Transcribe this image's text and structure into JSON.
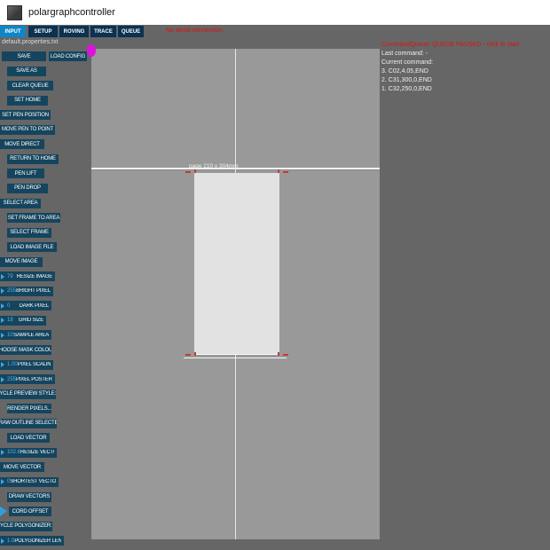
{
  "window": {
    "title": "polargraphcontroller"
  },
  "tabs": [
    {
      "label": "INPUT",
      "active": true
    },
    {
      "label": "SETUP",
      "active": false
    },
    {
      "label": "ROVING",
      "active": false
    },
    {
      "label": "TRACE",
      "active": false
    },
    {
      "label": "QUEUE",
      "active": false
    }
  ],
  "status": {
    "serial": "No serial connection."
  },
  "properties_file": "default.properties.txt",
  "sidebar": {
    "rows": [
      {
        "type": "pair",
        "buttons": [
          "SAVE",
          "LOAD CONFIG"
        ]
      },
      {
        "type": "button",
        "label": "SAVE AS"
      },
      {
        "type": "button",
        "label": "CLEAR QUEUE"
      },
      {
        "type": "button",
        "label": "SET HOME"
      },
      {
        "type": "button",
        "label": "SET PEN POSITION"
      },
      {
        "type": "button",
        "label": "MOVE PEN TO POINT"
      },
      {
        "type": "button",
        "label": "MOVE DIRECT"
      },
      {
        "type": "button",
        "label": "RETURN TO HOME"
      },
      {
        "type": "button",
        "label": "PEN LIFT"
      },
      {
        "type": "button",
        "label": "PEN DROP"
      },
      {
        "type": "button",
        "label": "SELECT AREA"
      },
      {
        "type": "button",
        "label": "SET FRAME TO AREA"
      },
      {
        "type": "button",
        "label": "SELECT FRAME"
      },
      {
        "type": "button",
        "label": "LOAD IMAGE FILE"
      },
      {
        "type": "button",
        "label": "MOVE IMAGE"
      },
      {
        "type": "number",
        "value": "79",
        "label": "RESIZE IMAGE"
      },
      {
        "type": "number",
        "value": "255",
        "label": "BRIGHT PIXEL"
      },
      {
        "type": "number",
        "value": "0",
        "label": "DARK PIXEL"
      },
      {
        "type": "number",
        "value": "18",
        "label": "GRID SIZE"
      },
      {
        "type": "number",
        "value": "10",
        "label": "SAMPLE AREA"
      },
      {
        "type": "button",
        "label": "CHOOSE MASK COLOUR"
      },
      {
        "type": "number",
        "value": "1.00",
        "label": "PIXEL SCALING"
      },
      {
        "type": "number",
        "value": "255",
        "label": "PIXEL POSTERIZE"
      },
      {
        "type": "button",
        "label": "CYCLE PREVIEW STYLE: 3"
      },
      {
        "type": "button",
        "label": "RENDER PIXELS..."
      },
      {
        "type": "button",
        "label": "DRAW OUTLINE SELECTED"
      },
      {
        "type": "button",
        "label": "LOAD VECTOR"
      },
      {
        "type": "number",
        "value": "102.6",
        "label": "RESIZE VECTOR"
      },
      {
        "type": "button",
        "label": "MOVE VECTOR"
      },
      {
        "type": "number",
        "value": "0",
        "label": "SHORTEST VECTOR"
      },
      {
        "type": "button",
        "label": "DRAW VECTORS"
      },
      {
        "type": "bignum",
        "label": "CORD OFFSET"
      },
      {
        "type": "button",
        "label": "CYCLE POLYGONIZER: 1"
      },
      {
        "type": "number",
        "value": "1.0",
        "label": "POLYGONIZER LENGTH"
      }
    ]
  },
  "canvas": {
    "page_label": "page 210 x 304mm"
  },
  "queue": {
    "header": "CommandQueue: QUEUE PAUSED - click to start",
    "lines": [
      "Last command: -",
      "Current command:",
      "3. C02,4.05,END",
      "2. C31,300,0,END",
      "1. C32,250,0,END"
    ]
  },
  "icons": {
    "app": "app-icon",
    "spinner_arrow": "right-triangle-icon",
    "pen_position": "magenta-ellipse"
  },
  "colors": {
    "titlebar_bg": "#ffffff",
    "window_bg": "#666666",
    "canvas_bg": "#999999",
    "page_bg": "#e2e2e2",
    "button_bg": "#15455e",
    "tab_active": "#0e86c7",
    "tab_inactive": "#0a3252",
    "value_blue": "#4db3ea",
    "alert_red": "#e01010",
    "pen_magenta": "#de12de",
    "corner_mark_red": "#c23a3a"
  }
}
